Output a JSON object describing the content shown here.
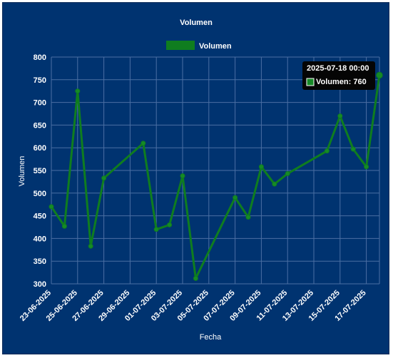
{
  "chart_data": {
    "type": "line",
    "title": "Volumen",
    "xlabel": "Fecha",
    "ylabel": "Volumen",
    "ylim": [
      300,
      800
    ],
    "y_ticks": [
      300,
      350,
      400,
      450,
      500,
      550,
      600,
      650,
      700,
      750,
      800
    ],
    "x_ticks": [
      "23-06-2025",
      "25-06-2025",
      "27-06-2025",
      "29-06-2025",
      "01-07-2025",
      "03-07-2025",
      "05-07-2025",
      "07-07-2025",
      "09-07-2025",
      "11-07-2025",
      "13-07-2025",
      "15-07-2025",
      "17-07-2025"
    ],
    "x_range": [
      "2025-06-23",
      "2025-07-18"
    ],
    "grid": true,
    "legend_position": "top-center",
    "colors": {
      "background": "#003370",
      "line": "#0f7d1f",
      "point": "#168a27",
      "grid": "#4b6fa3",
      "tooltip_bg": "#050505"
    },
    "series": [
      {
        "name": "Volumen",
        "x": [
          "2025-06-23",
          "2025-06-24",
          "2025-06-25",
          "2025-06-26",
          "2025-06-27",
          "2025-06-30",
          "2025-07-01",
          "2025-07-02",
          "2025-07-03",
          "2025-07-04",
          "2025-07-07",
          "2025-07-08",
          "2025-07-09",
          "2025-07-10",
          "2025-07-11",
          "2025-07-14",
          "2025-07-15",
          "2025-07-16",
          "2025-07-17",
          "2025-07-18"
        ],
        "values": [
          470,
          427,
          725,
          383,
          533,
          610,
          420,
          430,
          538,
          312,
          490,
          447,
          558,
          520,
          543,
          593,
          670,
          597,
          558,
          760
        ]
      }
    ],
    "tooltip": {
      "title": "2025-07-18 00:00",
      "body": "Volumen: 760"
    }
  }
}
